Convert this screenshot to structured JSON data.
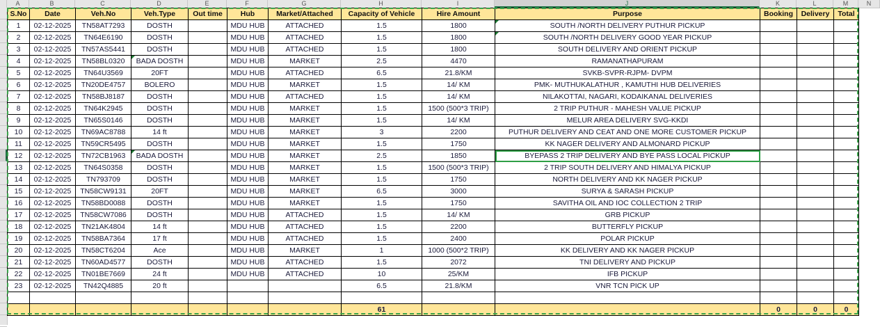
{
  "columns_letters": [
    "A",
    "B",
    "C",
    "D",
    "E",
    "F",
    "G",
    "H",
    "I",
    "J",
    "K",
    "L",
    "M",
    "N"
  ],
  "selected_column": "J",
  "selected_cell": {
    "row": 12,
    "column": "J"
  },
  "headers": [
    "S.No",
    "Date",
    "Veh.No",
    "Veh.Type",
    "Out time",
    "Hub",
    "Market/Attached",
    "Capacity of Vehicle",
    "Hire Amount",
    "Purpose",
    "Booking",
    "Delivery",
    "Total"
  ],
  "rows": [
    [
      "1",
      "02-12-2025",
      "TN58AT7293",
      "DOSTH",
      "",
      "MDU HUB",
      "ATTACHED",
      "1.5",
      "1800",
      "SOUTH /NORTH DELIVERY PUTHUR PICKUP",
      "",
      "",
      ""
    ],
    [
      "2",
      "02-12-2025",
      "TN64E6190",
      "DOSTH",
      "",
      "MDU HUB",
      "ATTACHED",
      "1.5",
      "1800",
      "SOUTH /NORTH DELIVERY GOOD YEAR PICKUP",
      "",
      "",
      ""
    ],
    [
      "3",
      "02-12-2025",
      "TN57AS5441",
      "DOSTH",
      "",
      "MDU HUB",
      "ATTACHED",
      "1.5",
      "1800",
      "SOUTH DELIVERY AND ORIENT PICKUP",
      "",
      "",
      ""
    ],
    [
      "4",
      "02-12-2025",
      "TN58BL0320",
      "BADA DOSTH",
      "",
      "MDU HUB",
      "MARKET",
      "2.5",
      "4470",
      "RAMANATHAPURAM",
      "",
      "",
      ""
    ],
    [
      "5",
      "02-12-2025",
      "TN64U3569",
      "20FT",
      "",
      "MDU HUB",
      "ATTACHED",
      "6.5",
      "21.8/KM",
      "SVKB-SVPR-RJPM- DVPM",
      "",
      "",
      ""
    ],
    [
      "6",
      "02-12-2025",
      "TN20DE4757",
      "BOLERO",
      "",
      "MDU HUB",
      "MARKET",
      "1.5",
      "14/ KM",
      "PMK- MUTHUKALATHUR , KAMUTHI HUB DELIVERIES",
      "",
      "",
      ""
    ],
    [
      "7",
      "02-12-2025",
      "TN58BJ8187",
      "DOSTH",
      "",
      "MDU HUB",
      "ATTACHED",
      "1.5",
      "14/ KM",
      "NILAKOTTAI, NAGARI, KODAIKANAL DELIVERIES",
      "",
      "",
      ""
    ],
    [
      "8",
      "02-12-2025",
      "TN64K2945",
      "DOSTH",
      "",
      "MDU HUB",
      "MARKET",
      "1.5",
      "1500 (500*3 TRIP)",
      "2 TRIP PUTHUR  - MAHESH VALUE PICKUP",
      "",
      "",
      ""
    ],
    [
      "9",
      "02-12-2025",
      "TN65S0146",
      "DOSTH",
      "",
      "MDU HUB",
      "MARKET",
      "1.5",
      "14/ KM",
      "MELUR AREA DELIVERY SVG-KKDI",
      "",
      "",
      ""
    ],
    [
      "10",
      "02-12-2025",
      "TN69AC8788",
      "14 ft",
      "",
      "MDU HUB",
      "MARKET",
      "3",
      "2200",
      "PUTHUR DELIVERY AND CEAT AND ONE MORE CUSTOMER PICKUP",
      "",
      "",
      ""
    ],
    [
      "11",
      "02-12-2025",
      "TN59CR5495",
      "DOSTH",
      "",
      "MDU HUB",
      "MARKET",
      "1.5",
      "1750",
      "KK NAGER DELIVERY AND ALMONARD PICKUP",
      "",
      "",
      ""
    ],
    [
      "12",
      "02-12-2025",
      "TN72CB1963",
      "BADA DOSTH",
      "",
      "MDU HUB",
      "MARKET",
      "2.5",
      "1850",
      "BYEPASS 2 TRIP DELIVERY AND BYE PASS LOCAL PICKUP",
      "",
      "",
      ""
    ],
    [
      "13",
      "02-12-2025",
      "TN64S0358",
      "DOSTH",
      "",
      "MDU HUB",
      "MARKET",
      "1.5",
      "1500 (500*3 TRIP)",
      "2 TRIP SOUTH DELIVERY AND HIMALYA PICKUP",
      "",
      "",
      ""
    ],
    [
      "14",
      "02-12-2025",
      "TN793709",
      "DOSTH",
      "",
      "MDU HUB",
      "MARKET",
      "1.5",
      "1750",
      "NORTH DELIVERY AND  KK NAGER PICKUP",
      "",
      "",
      ""
    ],
    [
      "15",
      "02-12-2025",
      "TN58CW9131",
      "20FT",
      "",
      "MDU HUB",
      "MARKET",
      "6.5",
      "3000",
      "SURYA & SARASH  PICKUP",
      "",
      "",
      ""
    ],
    [
      "16",
      "02-12-2025",
      "TN58BD0088",
      "DOSTH",
      "",
      "MDU HUB",
      "MARKET",
      "1.5",
      "1750",
      "SAVITHA OIL AND IOC COLLECTION 2 TRIP",
      "",
      "",
      ""
    ],
    [
      "17",
      "02-12-2025",
      "TN58CW7086",
      "DOSTH",
      "",
      "MDU HUB",
      "ATTACHED",
      "1.5",
      "14/ KM",
      "GRB PICKUP",
      "",
      "",
      ""
    ],
    [
      "18",
      "02-12-2025",
      "TN21AK4804",
      "14 ft",
      "",
      "MDU HUB",
      "ATTACHED",
      "1.5",
      "2200",
      "BUTTERFLY PICKUP",
      "",
      "",
      ""
    ],
    [
      "19",
      "02-12-2025",
      "TN58BA7364",
      "17 ft",
      "",
      "MDU HUB",
      "ATTACHED",
      "1.5",
      "2400",
      "POLAR  PICKUP",
      "",
      "",
      ""
    ],
    [
      "20",
      "02-12-2025",
      "TN58CT6204",
      "Ace",
      "",
      "MDU HUB",
      "MARKET",
      "1",
      "1000 (500*2 TRIP)",
      "KK DELIVERY AND KK NAGER PICKUP",
      "",
      "",
      ""
    ],
    [
      "21",
      "02-12-2025",
      "TN60AD4577",
      "DOSTH",
      "",
      "MDU HUB",
      "ATTACHED",
      "1.5",
      "2072",
      "TNI DELIVERY AND PICKUP",
      "",
      "",
      ""
    ],
    [
      "22",
      "02-12-2025",
      "TN01BE7669",
      "24 ft",
      "",
      "MDU HUB",
      "ATTACHED",
      "10",
      "25/KM",
      "IFB  PICKUP",
      "",
      "",
      ""
    ],
    [
      "23",
      "02-12-2025",
      "TN42Q4885",
      "20 ft",
      "",
      "",
      "",
      "6.5",
      "21.8/KM",
      "VNR TCN PICK UP",
      "",
      "",
      ""
    ],
    [
      "",
      "",
      "",
      "",
      "",
      "",
      "",
      "",
      "",
      "",
      "",
      "",
      ""
    ]
  ],
  "totals": [
    "",
    "",
    "",
    "",
    "",
    "",
    "",
    "61",
    "",
    "",
    "0",
    "0",
    "0"
  ],
  "colors": {
    "header_fill": "#ffe699",
    "selection": "#2e9e45",
    "copy_marquee": "#3aa34a"
  }
}
